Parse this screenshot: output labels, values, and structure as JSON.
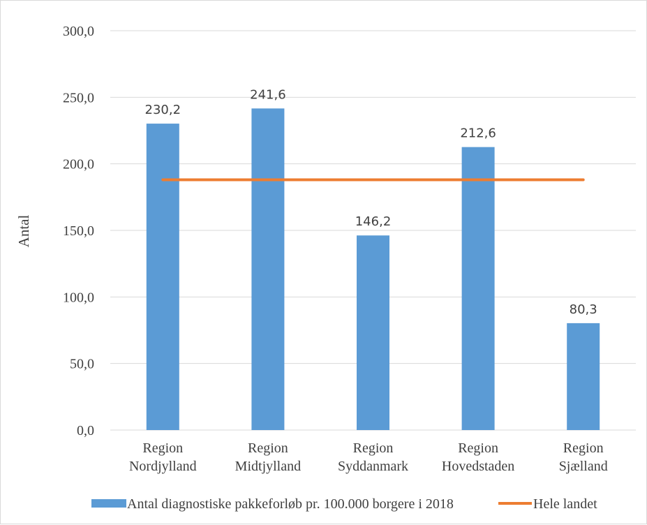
{
  "chart_data": {
    "type": "bar",
    "categories": [
      [
        "Region",
        "Nordjylland"
      ],
      [
        "Region",
        "Midtjylland"
      ],
      [
        "Region",
        "Syddanmark"
      ],
      [
        "Region",
        "Hovedstaden"
      ],
      [
        "Region",
        "Sjælland"
      ]
    ],
    "series": [
      {
        "name": "Antal diagnostiske pakkeforløb pr. 100.000 borgere i 2018",
        "type": "bar",
        "color": "#5b9bd5",
        "values": [
          230.2,
          241.6,
          146.2,
          212.6,
          80.3
        ],
        "data_labels": [
          "230,2",
          "241,6",
          "146,2",
          "212,6",
          "80,3"
        ]
      },
      {
        "name": "Hele landet",
        "type": "line",
        "color": "#ed7d31",
        "values": [
          188,
          188,
          188,
          188,
          188
        ]
      }
    ],
    "ylabel": "Antal",
    "ylim": [
      0,
      300
    ],
    "yticks": [
      0,
      50,
      100,
      150,
      200,
      250,
      300
    ],
    "ytick_labels": [
      "0,0",
      "50,0",
      "100,0",
      "150,0",
      "200,0",
      "250,0",
      "300,0"
    ],
    "grid": true,
    "legend_position": "bottom"
  }
}
